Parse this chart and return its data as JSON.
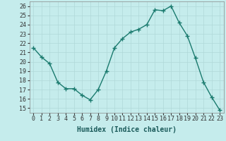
{
  "x": [
    0,
    1,
    2,
    3,
    4,
    5,
    6,
    7,
    8,
    9,
    10,
    11,
    12,
    13,
    14,
    15,
    16,
    17,
    18,
    19,
    20,
    21,
    22,
    23
  ],
  "y": [
    21.5,
    20.5,
    19.8,
    17.8,
    17.1,
    17.1,
    16.4,
    15.9,
    17.0,
    19.0,
    21.5,
    22.5,
    23.2,
    23.5,
    24.0,
    25.6,
    25.5,
    26.0,
    24.2,
    22.8,
    20.4,
    17.8,
    16.2,
    14.8
  ],
  "line_color": "#1a7a6e",
  "marker": "+",
  "marker_size": 4,
  "marker_linewidth": 1.0,
  "line_width": 1.0,
  "xlabel": "Humidex (Indice chaleur)",
  "xlabel_fontsize": 7,
  "ylabel": "",
  "ylim": [
    14.5,
    26.5
  ],
  "yticks": [
    15,
    16,
    17,
    18,
    19,
    20,
    21,
    22,
    23,
    24,
    25,
    26
  ],
  "xtick_labels": [
    "0",
    "1",
    "2",
    "3",
    "4",
    "5",
    "6",
    "7",
    "8",
    "9",
    "10",
    "11",
    "12",
    "13",
    "14",
    "15",
    "16",
    "17",
    "18",
    "19",
    "20",
    "21",
    "22",
    "23"
  ],
  "bg_color": "#c5ecec",
  "grid_color": "#b0d8d8",
  "tick_fontsize": 6,
  "font_family": "monospace"
}
